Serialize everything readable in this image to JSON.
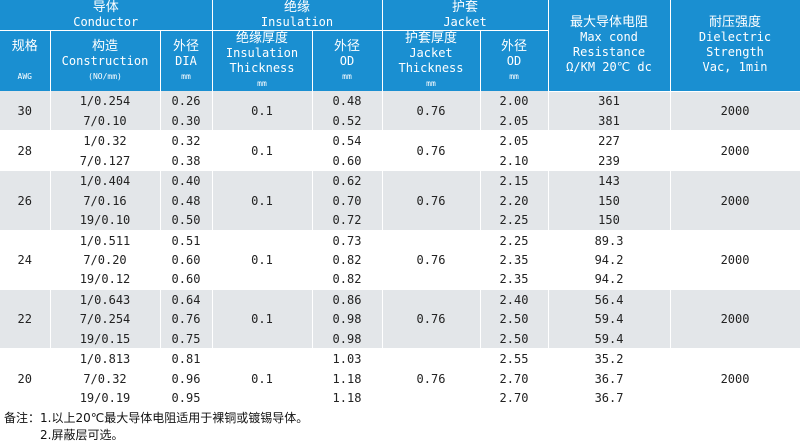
{
  "header": {
    "conductor_cn": "导体",
    "conductor_en": "Conductor",
    "insulation_cn": "绝缘",
    "insulation_en": "Insulation",
    "jacket_cn": "护套",
    "jacket_en": "Jacket",
    "resistance_cn": "最大导体电阻",
    "resistance_en1": "Max cond",
    "resistance_en2": "Resistance",
    "resistance_en3": "Ω/KM 20℃ dc",
    "dielectric_cn": "耐压强度",
    "dielectric_en1": "Dielectric",
    "dielectric_en2": "Strength",
    "dielectric_en3": "Vac, 1min",
    "gauge_cn": "规格",
    "gauge_unit": "AWG",
    "construction_cn": "构造",
    "construction_en": "Construction",
    "construction_unit": "(NO/mm)",
    "dia_cn": "外径",
    "dia_en": "DIA",
    "dia_unit": "mm",
    "ins_thick_cn": "绝缘厚度",
    "ins_thick_en1": "Insulation",
    "ins_thick_en2": "Thickness",
    "ins_thick_unit": "mm",
    "ins_od_cn": "外径",
    "ins_od_en": "OD",
    "ins_od_unit": "mm",
    "jk_thick_cn": "护套厚度",
    "jk_thick_en1": "Jacket",
    "jk_thick_en2": "Thickness",
    "jk_thick_unit": "mm",
    "jk_od_cn": "外径",
    "jk_od_en": "OD",
    "jk_od_unit": "mm"
  },
  "groups": [
    {
      "awg": "30",
      "ins_thick": "0.1",
      "jk_thick": "0.76",
      "dielectric": "2000",
      "rows": [
        {
          "construction": "1/0.254",
          "dia": "0.26",
          "ins_od": "0.48",
          "jk_od": "2.00",
          "resistance": "361"
        },
        {
          "construction": "7/0.10",
          "dia": "0.30",
          "ins_od": "0.52",
          "jk_od": "2.05",
          "resistance": "381"
        }
      ]
    },
    {
      "awg": "28",
      "ins_thick": "0.1",
      "jk_thick": "0.76",
      "dielectric": "2000",
      "rows": [
        {
          "construction": "1/0.32",
          "dia": "0.32",
          "ins_od": "0.54",
          "jk_od": "2.05",
          "resistance": "227"
        },
        {
          "construction": "7/0.127",
          "dia": "0.38",
          "ins_od": "0.60",
          "jk_od": "2.10",
          "resistance": "239"
        }
      ]
    },
    {
      "awg": "26",
      "ins_thick": "0.1",
      "jk_thick": "0.76",
      "dielectric": "2000",
      "rows": [
        {
          "construction": "1/0.404",
          "dia": "0.40",
          "ins_od": "0.62",
          "jk_od": "2.15",
          "resistance": "143"
        },
        {
          "construction": "7/0.16",
          "dia": "0.48",
          "ins_od": "0.70",
          "jk_od": "2.20",
          "resistance": "150"
        },
        {
          "construction": "19/0.10",
          "dia": "0.50",
          "ins_od": "0.72",
          "jk_od": "2.25",
          "resistance": "150"
        }
      ]
    },
    {
      "awg": "24",
      "ins_thick": "0.1",
      "jk_thick": "0.76",
      "dielectric": "2000",
      "rows": [
        {
          "construction": "1/0.511",
          "dia": "0.51",
          "ins_od": "0.73",
          "jk_od": "2.25",
          "resistance": "89.3"
        },
        {
          "construction": "7/0.20",
          "dia": "0.60",
          "ins_od": "0.82",
          "jk_od": "2.35",
          "resistance": "94.2"
        },
        {
          "construction": "19/0.12",
          "dia": "0.60",
          "ins_od": "0.82",
          "jk_od": "2.35",
          "resistance": "94.2"
        }
      ]
    },
    {
      "awg": "22",
      "ins_thick": "0.1",
      "jk_thick": "0.76",
      "dielectric": "2000",
      "rows": [
        {
          "construction": "1/0.643",
          "dia": "0.64",
          "ins_od": "0.86",
          "jk_od": "2.40",
          "resistance": "56.4"
        },
        {
          "construction": "7/0.254",
          "dia": "0.76",
          "ins_od": "0.98",
          "jk_od": "2.50",
          "resistance": "59.4"
        },
        {
          "construction": "19/0.15",
          "dia": "0.75",
          "ins_od": "0.98",
          "jk_od": "2.50",
          "resistance": "59.4"
        }
      ]
    },
    {
      "awg": "20",
      "ins_thick": "0.1",
      "jk_thick": "0.76",
      "dielectric": "2000",
      "rows": [
        {
          "construction": "1/0.813",
          "dia": "0.81",
          "ins_od": "1.03",
          "jk_od": "2.55",
          "resistance": "35.2"
        },
        {
          "construction": "7/0.32",
          "dia": "0.96",
          "ins_od": "1.18",
          "jk_od": "2.70",
          "resistance": "36.7"
        },
        {
          "construction": "19/0.19",
          "dia": "0.95",
          "ins_od": "1.18",
          "jk_od": "2.70",
          "resistance": "36.7"
        }
      ]
    }
  ],
  "notes": {
    "line1": "备注：1.以上20℃最大导体电阻适用于裸铜或镀锡导体。",
    "line2": "2.屏蔽层可选。"
  }
}
